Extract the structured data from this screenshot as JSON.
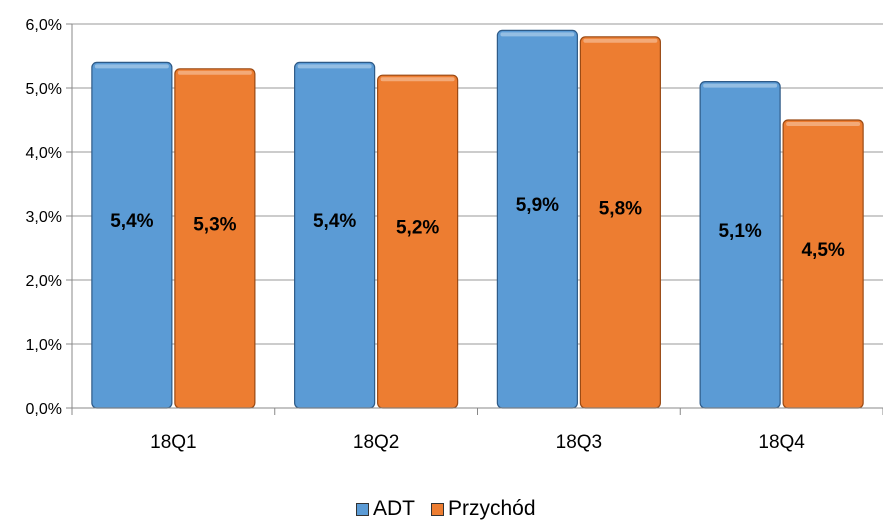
{
  "chart_data": {
    "type": "bar",
    "categories": [
      "18Q1",
      "18Q2",
      "18Q3",
      "18Q4"
    ],
    "series": [
      {
        "name": "ADT",
        "values": [
          5.4,
          5.4,
          5.9,
          5.1
        ],
        "labels": [
          "5,4%",
          "5,4%",
          "5,9%",
          "5,1%"
        ],
        "color": "#5b9bd5"
      },
      {
        "name": "Przychód",
        "values": [
          5.3,
          5.2,
          5.8,
          4.5
        ],
        "labels": [
          "5,3%",
          "5,2%",
          "5,8%",
          "4,5%"
        ],
        "color": "#ed7d31"
      }
    ],
    "ylim": [
      0,
      6
    ],
    "yticks": [
      {
        "value": 0,
        "label": "0,0%"
      },
      {
        "value": 1,
        "label": "1,0%"
      },
      {
        "value": 2,
        "label": "2,0%"
      },
      {
        "value": 3,
        "label": "3,0%"
      },
      {
        "value": 4,
        "label": "4,0%"
      },
      {
        "value": 5,
        "label": "5,0%"
      },
      {
        "value": 6,
        "label": "6,0%"
      }
    ],
    "grid": true,
    "legend_position": "bottom",
    "title": "",
    "xlabel": "",
    "ylabel": ""
  }
}
